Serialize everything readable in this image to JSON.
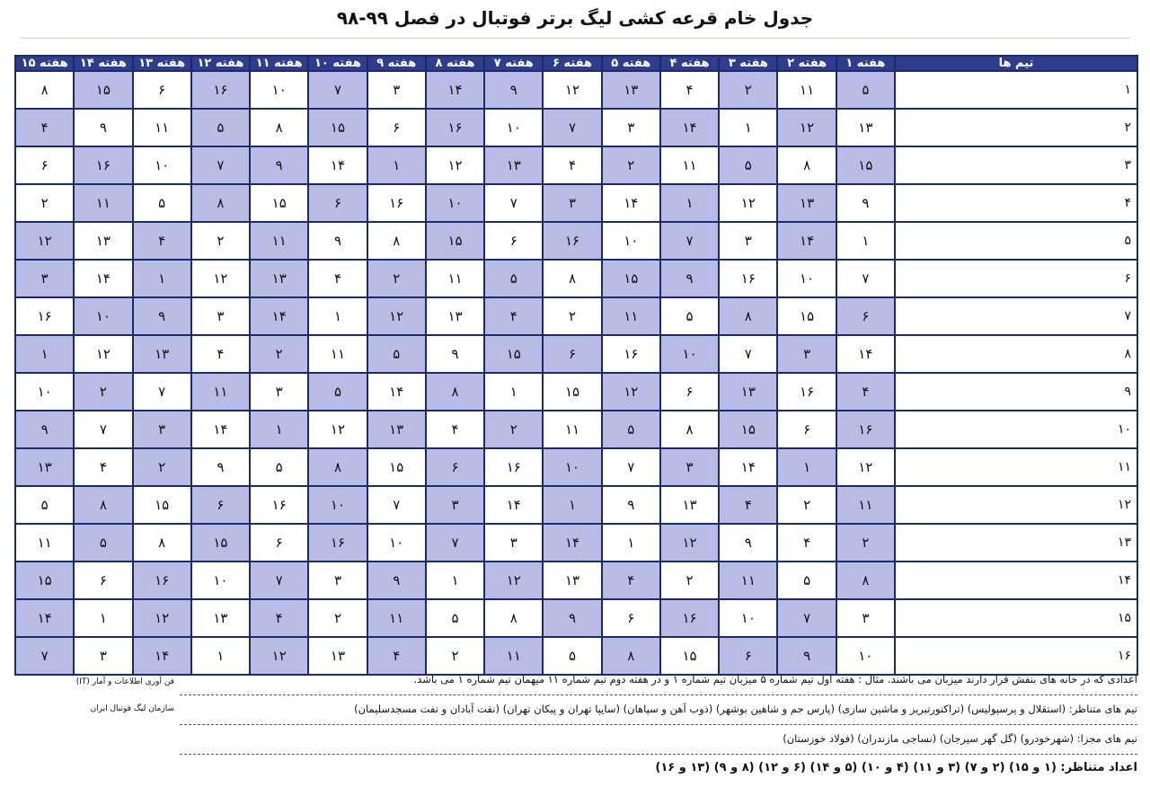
{
  "title": "جدول خام قرعه کشی لیگ برتر فوتبال در فصل ۹۹-۹۸",
  "table": {
    "team_header": "تیم ها",
    "week_headers": [
      "هفته ۱",
      "هفته ۲",
      "هفته ۳",
      "هفته ۴",
      "هفته ۵",
      "هفته ۶",
      "هفته ۷",
      "هفته ۸",
      "هفته ۹",
      "هفته ۱۰",
      "هفته ۱۱",
      "هفته ۱۲",
      "هفته ۱۳",
      "هفته ۱۴",
      "هفته ۱۵"
    ],
    "rows": [
      {
        "team": "۱",
        "cells": [
          "۵",
          "۱۱",
          "۲",
          "۴",
          "۱۳",
          "۱۲",
          "۹",
          "۱۴",
          "۳",
          "۷",
          "۱۰",
          "۱۶",
          "۶",
          "۱۵",
          "۸"
        ],
        "home": [
          true,
          false,
          true,
          false,
          true,
          false,
          true,
          true,
          false,
          true,
          false,
          true,
          false,
          true,
          false
        ]
      },
      {
        "team": "۲",
        "cells": [
          "۱۳",
          "۱۲",
          "۱",
          "۱۴",
          "۳",
          "۷",
          "۱۰",
          "۱۶",
          "۶",
          "۱۵",
          "۸",
          "۵",
          "۱۱",
          "۹",
          "۴"
        ],
        "home": [
          false,
          true,
          false,
          true,
          false,
          true,
          false,
          true,
          false,
          true,
          false,
          true,
          false,
          false,
          true
        ]
      },
      {
        "team": "۳",
        "cells": [
          "۱۵",
          "۸",
          "۵",
          "۱۱",
          "۲",
          "۴",
          "۱۳",
          "۱۲",
          "۱",
          "۱۴",
          "۹",
          "۷",
          "۱۰",
          "۱۶",
          "۶"
        ],
        "home": [
          true,
          false,
          true,
          false,
          true,
          false,
          true,
          false,
          true,
          false,
          true,
          true,
          false,
          true,
          false
        ]
      },
      {
        "team": "۴",
        "cells": [
          "۹",
          "۱۳",
          "۱۲",
          "۱",
          "۱۴",
          "۳",
          "۷",
          "۱۰",
          "۱۶",
          "۶",
          "۱۵",
          "۸",
          "۵",
          "۱۱",
          "۲"
        ],
        "home": [
          false,
          true,
          false,
          true,
          false,
          true,
          false,
          true,
          false,
          true,
          false,
          true,
          false,
          true,
          false
        ]
      },
      {
        "team": "۵",
        "cells": [
          "۱",
          "۱۴",
          "۳",
          "۷",
          "۱۰",
          "۱۶",
          "۶",
          "۱۵",
          "۸",
          "۹",
          "۱۱",
          "۲",
          "۴",
          "۱۳",
          "۱۲"
        ],
        "home": [
          false,
          true,
          false,
          true,
          false,
          true,
          false,
          true,
          false,
          false,
          true,
          false,
          true,
          false,
          true
        ]
      },
      {
        "team": "۶",
        "cells": [
          "۷",
          "۱۰",
          "۱۶",
          "۹",
          "۱۵",
          "۸",
          "۵",
          "۱۱",
          "۲",
          "۴",
          "۱۳",
          "۱۲",
          "۱",
          "۱۴",
          "۳"
        ],
        "home": [
          false,
          false,
          false,
          true,
          true,
          false,
          true,
          false,
          true,
          false,
          true,
          false,
          true,
          false,
          true
        ]
      },
      {
        "team": "۷",
        "cells": [
          "۶",
          "۱۵",
          "۸",
          "۵",
          "۱۱",
          "۲",
          "۴",
          "۱۳",
          "۱۲",
          "۱",
          "۱۴",
          "۳",
          "۹",
          "۱۰",
          "۱۶"
        ],
        "home": [
          true,
          false,
          true,
          false,
          true,
          false,
          true,
          false,
          true,
          false,
          true,
          false,
          true,
          true,
          false
        ]
      },
      {
        "team": "۸",
        "cells": [
          "۱۴",
          "۳",
          "۷",
          "۱۰",
          "۱۶",
          "۶",
          "۱۵",
          "۹",
          "۵",
          "۱۱",
          "۲",
          "۴",
          "۱۳",
          "۱۲",
          "۱"
        ],
        "home": [
          false,
          true,
          false,
          true,
          false,
          true,
          true,
          false,
          true,
          false,
          true,
          false,
          true,
          false,
          true
        ]
      },
      {
        "team": "۹",
        "cells": [
          "۴",
          "۱۶",
          "۱۳",
          "۶",
          "۱۲",
          "۱۵",
          "۱",
          "۸",
          "۱۴",
          "۵",
          "۳",
          "۱۱",
          "۷",
          "۲",
          "۱۰"
        ],
        "home": [
          true,
          false,
          true,
          false,
          true,
          false,
          false,
          true,
          false,
          true,
          false,
          true,
          false,
          true,
          false
        ]
      },
      {
        "team": "۱۰",
        "cells": [
          "۱۶",
          "۶",
          "۱۵",
          "۸",
          "۵",
          "۱۱",
          "۲",
          "۴",
          "۱۳",
          "۱۲",
          "۱",
          "۱۴",
          "۳",
          "۷",
          "۹"
        ],
        "home": [
          true,
          false,
          true,
          false,
          true,
          false,
          true,
          false,
          true,
          false,
          true,
          false,
          true,
          false,
          true
        ]
      },
      {
        "team": "۱۱",
        "cells": [
          "۱۲",
          "۱",
          "۱۴",
          "۳",
          "۷",
          "۱۰",
          "۱۶",
          "۶",
          "۱۵",
          "۸",
          "۵",
          "۹",
          "۲",
          "۴",
          "۱۳"
        ],
        "home": [
          false,
          true,
          false,
          true,
          false,
          true,
          false,
          true,
          false,
          true,
          false,
          false,
          true,
          false,
          true
        ]
      },
      {
        "team": "۱۲",
        "cells": [
          "۱۱",
          "۲",
          "۴",
          "۱۳",
          "۹",
          "۱",
          "۱۴",
          "۳",
          "۷",
          "۱۰",
          "۱۶",
          "۶",
          "۱۵",
          "۸",
          "۵"
        ],
        "home": [
          true,
          false,
          true,
          false,
          false,
          true,
          false,
          true,
          false,
          true,
          false,
          true,
          false,
          true,
          false
        ]
      },
      {
        "team": "۱۳",
        "cells": [
          "۲",
          "۴",
          "۹",
          "۱۲",
          "۱",
          "۱۴",
          "۳",
          "۷",
          "۱۰",
          "۱۶",
          "۶",
          "۱۵",
          "۸",
          "۵",
          "۱۱"
        ],
        "home": [
          true,
          false,
          false,
          true,
          false,
          true,
          false,
          true,
          false,
          true,
          false,
          true,
          false,
          true,
          false
        ]
      },
      {
        "team": "۱۴",
        "cells": [
          "۸",
          "۵",
          "۱۱",
          "۲",
          "۴",
          "۱۳",
          "۱۲",
          "۱",
          "۹",
          "۳",
          "۷",
          "۱۰",
          "۱۶",
          "۶",
          "۱۵"
        ],
        "home": [
          true,
          false,
          true,
          false,
          true,
          false,
          true,
          false,
          true,
          false,
          true,
          false,
          true,
          false,
          true
        ]
      },
      {
        "team": "۱۵",
        "cells": [
          "۳",
          "۷",
          "۱۰",
          "۱۶",
          "۶",
          "۹",
          "۸",
          "۵",
          "۱۱",
          "۲",
          "۴",
          "۱۳",
          "۱۲",
          "۱",
          "۱۴"
        ],
        "home": [
          false,
          true,
          false,
          true,
          false,
          true,
          false,
          false,
          true,
          false,
          true,
          false,
          true,
          false,
          true
        ]
      },
      {
        "team": "۱۶",
        "cells": [
          "۱۰",
          "۹",
          "۶",
          "۱۵",
          "۸",
          "۵",
          "۱۱",
          "۲",
          "۴",
          "۱۳",
          "۱۲",
          "۱",
          "۱۴",
          "۳",
          "۷"
        ],
        "home": [
          false,
          true,
          true,
          false,
          true,
          false,
          true,
          false,
          true,
          false,
          true,
          false,
          true,
          false,
          true
        ]
      }
    ]
  },
  "notes": {
    "line1": "اعدادی که در خانه های بنفش قرار دارند میزبان می باشند. مثال : هفته اول تیم شماره ۵ میزبان تیم شماره ۱ و در هفته دوم تیم شماره ۱۱ میهمان تیم شماره ۱ می باشد.",
    "line2": "تیم های متناظر: (استقلال و پرسپولیس) (تراکتورتبریز و ماشین سازی) (پارس جم و شاهین بوشهر) (ذوب آهن و سپاهان) (سایپا تهران و پیکان تهران) (نفت آبادان و نفت مسجدسلیمان)",
    "line3": "تیم های مجزا: (شهرخودرو) (گل گهر سیرجان) (نساجی مازندران) (فولاد خوزستان)",
    "line4": "اعداد متناظر: (۱ و ۱۵) (۲ و ۷) (۳ و ۱۱) (۴ و ۱۰) (۵ و ۱۴) (۶ و ۱۲) (۸ و ۹) (۱۳ و ۱۶)"
  },
  "org": {
    "dept": "فن آوری اطلاعات و آمار (IT)",
    "name": "سازمان لیگ فوتبال ایران"
  }
}
